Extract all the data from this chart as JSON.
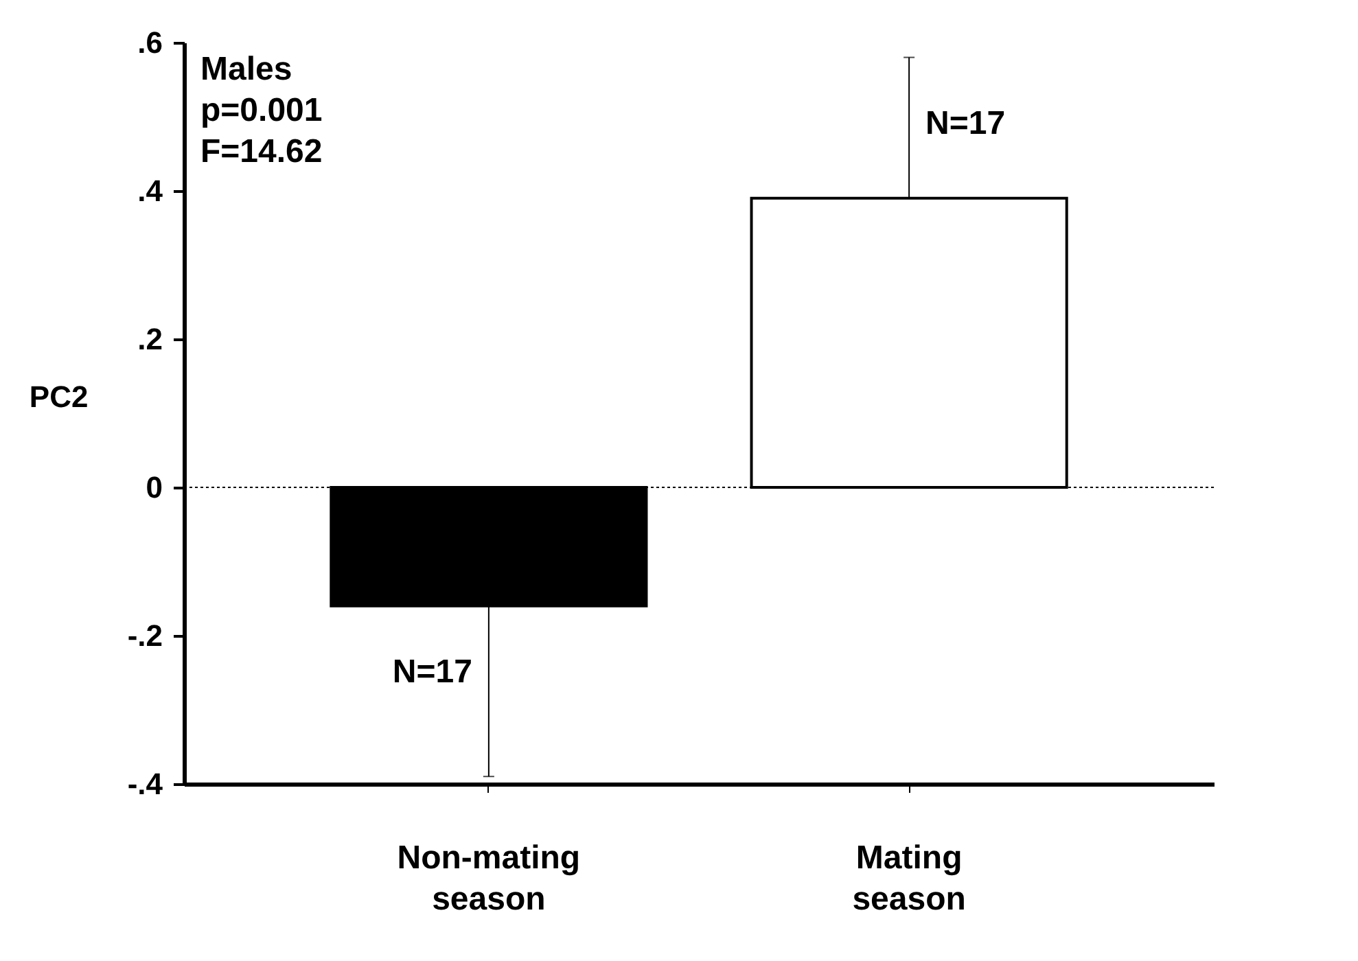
{
  "chart_data": {
    "type": "bar",
    "ylabel": "PC2",
    "categories": [
      "Non-mating season",
      "Mating season"
    ],
    "values": [
      -0.16,
      0.39
    ],
    "colors": [
      "#000000",
      "#ffffff"
    ],
    "errors": [
      [
        -0.39,
        -0.16
      ],
      [
        0.39,
        0.58
      ]
    ],
    "ylim": [
      -0.4,
      0.6
    ],
    "yticks": [
      {
        "value": -0.4,
        "label": "-.4"
      },
      {
        "value": -0.2,
        "label": "-.2"
      },
      0,
      {
        "value": 0.2,
        "label": ".2"
      },
      {
        "value": 0.4,
        "label": ".4"
      },
      {
        "value": 0.6,
        "label": ".6"
      }
    ],
    "ref_lines": [
      {
        "axis": "y",
        "value": 0,
        "line_style": "dotted"
      }
    ],
    "annotations": [
      "Males",
      "p=0.001",
      "F=14.62",
      {
        "text": "N=17",
        "x": "Non-mating season",
        "y": -0.25
      },
      {
        "text": "N=17",
        "x": "Mating season",
        "y": 0.49
      }
    ],
    "grid": false
  }
}
